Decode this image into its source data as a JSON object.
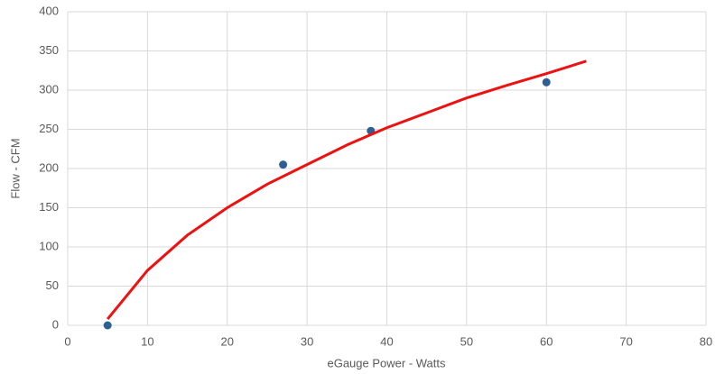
{
  "chart_data": {
    "type": "scatter",
    "x_label": "eGauge Power - Watts",
    "y_label": "Flow - CFM",
    "xlim": [
      0,
      80
    ],
    "xticks": [
      0,
      10,
      20,
      30,
      40,
      50,
      60,
      70,
      80
    ],
    "ylim": [
      0,
      400
    ],
    "yticks": [
      0,
      50,
      100,
      150,
      200,
      250,
      300,
      350,
      400
    ],
    "grid": true,
    "series": [
      {
        "type": "scatter",
        "color": "#2e5f94",
        "x": [
          5,
          27,
          38,
          60
        ],
        "values": [
          0,
          205,
          248,
          310
        ]
      },
      {
        "type": "line",
        "color": "#ee1111",
        "x": [
          5,
          10,
          15,
          20,
          25,
          30,
          35,
          40,
          45,
          50,
          55,
          60,
          65
        ],
        "values": [
          8,
          70,
          115,
          150,
          180,
          205,
          230,
          252,
          271,
          290,
          306,
          321,
          337
        ]
      }
    ]
  }
}
